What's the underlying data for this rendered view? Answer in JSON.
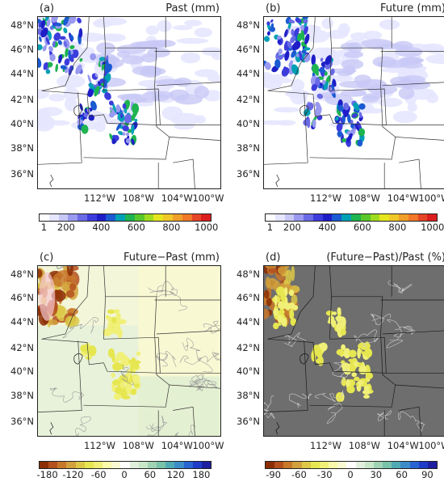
{
  "panels": [
    {
      "letter": "(a)",
      "title": "Past (mm)",
      "lat_labels": [
        "48°N",
        "46°N",
        "44°N",
        "42°N",
        "40°N",
        "38°N",
        "36°N"
      ],
      "lon_labels": [
        "112°W",
        "108°W",
        "104°W",
        "100°W"
      ],
      "colorbar_labels": [
        "1",
        "200",
        "400",
        "600",
        "800",
        "1000"
      ],
      "colors": [
        "#ffffff",
        "#e6e6ff",
        "#c8c8f6",
        "#9a9af0",
        "#6a6ae6",
        "#3c3cdc",
        "#1e1ec8",
        "#1a5ad2",
        "#00a0b4",
        "#1eb450",
        "#5ac828",
        "#a0dc1e",
        "#e6e61e",
        "#f0c828",
        "#f0a028",
        "#f07828",
        "#e64628",
        "#dc1e1e"
      ],
      "background": "#ffffff",
      "mode": "precip"
    },
    {
      "letter": "(b)",
      "title": "Future (mm)",
      "lat_labels": [
        "48°N",
        "46°N",
        "44°N",
        "42°N",
        "40°N",
        "38°N",
        "36°N"
      ],
      "lon_labels": [
        "112°W",
        "108°W",
        "104°W",
        "100°W"
      ],
      "colorbar_labels": [
        "1",
        "200",
        "400",
        "600",
        "800",
        "1000"
      ],
      "colors": [
        "#ffffff",
        "#e6e6ff",
        "#c8c8f6",
        "#9a9af0",
        "#6a6ae6",
        "#3c3cdc",
        "#1e1ec8",
        "#1a5ad2",
        "#00a0b4",
        "#1eb450",
        "#5ac828",
        "#a0dc1e",
        "#e6e61e",
        "#f0c828",
        "#f0a028",
        "#f07828",
        "#e64628",
        "#dc1e1e"
      ],
      "background": "#ffffff",
      "mode": "precip"
    },
    {
      "letter": "(c)",
      "title": "Future−Past (mm)",
      "lat_labels": [
        "48°N",
        "46°N",
        "44°N",
        "42°N",
        "40°N",
        "38°N",
        "36°N"
      ],
      "lon_labels": [
        "112°W",
        "108°W",
        "104°W",
        "100°W"
      ],
      "colorbar_labels": [
        "-180",
        "-120",
        "-60",
        "0",
        "60",
        "120",
        "180"
      ],
      "colors": [
        "#8c2d04",
        "#b4501e",
        "#c8782a",
        "#d2a03c",
        "#dcc846",
        "#e6e650",
        "#f0f078",
        "#fafaaa",
        "#fafad2",
        "#ffffff",
        "#e1f0dc",
        "#c8e6c8",
        "#a0d2b4",
        "#78c3aa",
        "#50aab4",
        "#3c8cc8",
        "#2864d2",
        "#1e3cc8",
        "#1e1ea0"
      ],
      "background": "#f3f6d8",
      "mode": "diff"
    },
    {
      "letter": "(d)",
      "title": "(Future−Past)/Past (%)",
      "lat_labels": [
        "48°N",
        "46°N",
        "44°N",
        "42°N",
        "40°N",
        "38°N",
        "36°N"
      ],
      "lon_labels": [
        "112°W",
        "108°W",
        "104°W",
        "100°W"
      ],
      "colorbar_labels": [
        "-90",
        "-60",
        "-30",
        "0",
        "30",
        "60",
        "90"
      ],
      "colors": [
        "#8c2d04",
        "#b4501e",
        "#c8782a",
        "#d2a03c",
        "#dcc846",
        "#e6e650",
        "#f0f078",
        "#fafaaa",
        "#fafad2",
        "#ffffff",
        "#e1f0dc",
        "#c8e6c8",
        "#a0d2b4",
        "#78c3aa",
        "#50aab4",
        "#3c8cc8",
        "#2864d2",
        "#1e3cc8",
        "#1e1ea0"
      ],
      "background": "#6e6e6e",
      "mode": "pct"
    }
  ]
}
